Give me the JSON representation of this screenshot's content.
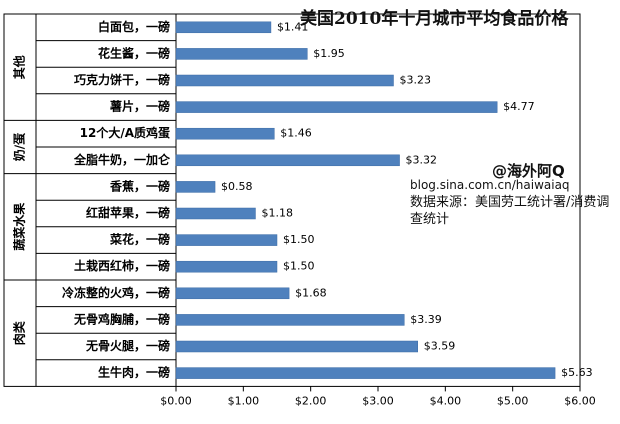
{
  "chart_data": {
    "type": "bar",
    "orientation": "horizontal",
    "title": "美国2010年十月城市平均食品价格",
    "categories": [
      "白面包，一磅",
      "花生酱，一磅",
      "巧克力饼干，一磅",
      "薯片，一磅",
      "12个大/A质鸡蛋",
      "全脂牛奶，一加仑",
      "香蕉，一磅",
      "红甜苹果，一磅",
      "菜花，一磅",
      "土栽西红柿，一磅",
      "冷冻整的火鸡，一磅",
      "无骨鸡胸脯，一磅",
      "无骨火腿，一磅",
      "生牛肉，一磅"
    ],
    "values": [
      1.41,
      1.95,
      3.23,
      4.77,
      1.46,
      3.32,
      0.58,
      1.18,
      1.5,
      1.5,
      1.68,
      3.39,
      3.59,
      5.63
    ],
    "value_labels": [
      "$1.41",
      "$1.95",
      "$3.23",
      "$4.77",
      "$1.46",
      "$3.32",
      "$0.58",
      "$1.18",
      "$1.50",
      "$1.50",
      "$1.68",
      "$3.39",
      "$3.59",
      "$5.63"
    ],
    "groups": [
      {
        "name": "其他",
        "count": 4
      },
      {
        "name": "奶/蛋",
        "count": 2
      },
      {
        "name": "蔬菜水果",
        "count": 4
      },
      {
        "name": "肉类",
        "count": 4
      }
    ],
    "xlim": [
      0,
      6
    ],
    "xticks": [
      "$0.00",
      "$1.00",
      "$2.00",
      "$3.00",
      "$4.00",
      "$5.00",
      "$6.00"
    ],
    "bar_color": "#4f81bd",
    "grid": false
  },
  "annotations": {
    "credit": "@海外阿Q",
    "blog": "blog.sina.com.cn/haiwaiaq",
    "source": "数据来源：美国劳工统计署/消费调查统计"
  }
}
